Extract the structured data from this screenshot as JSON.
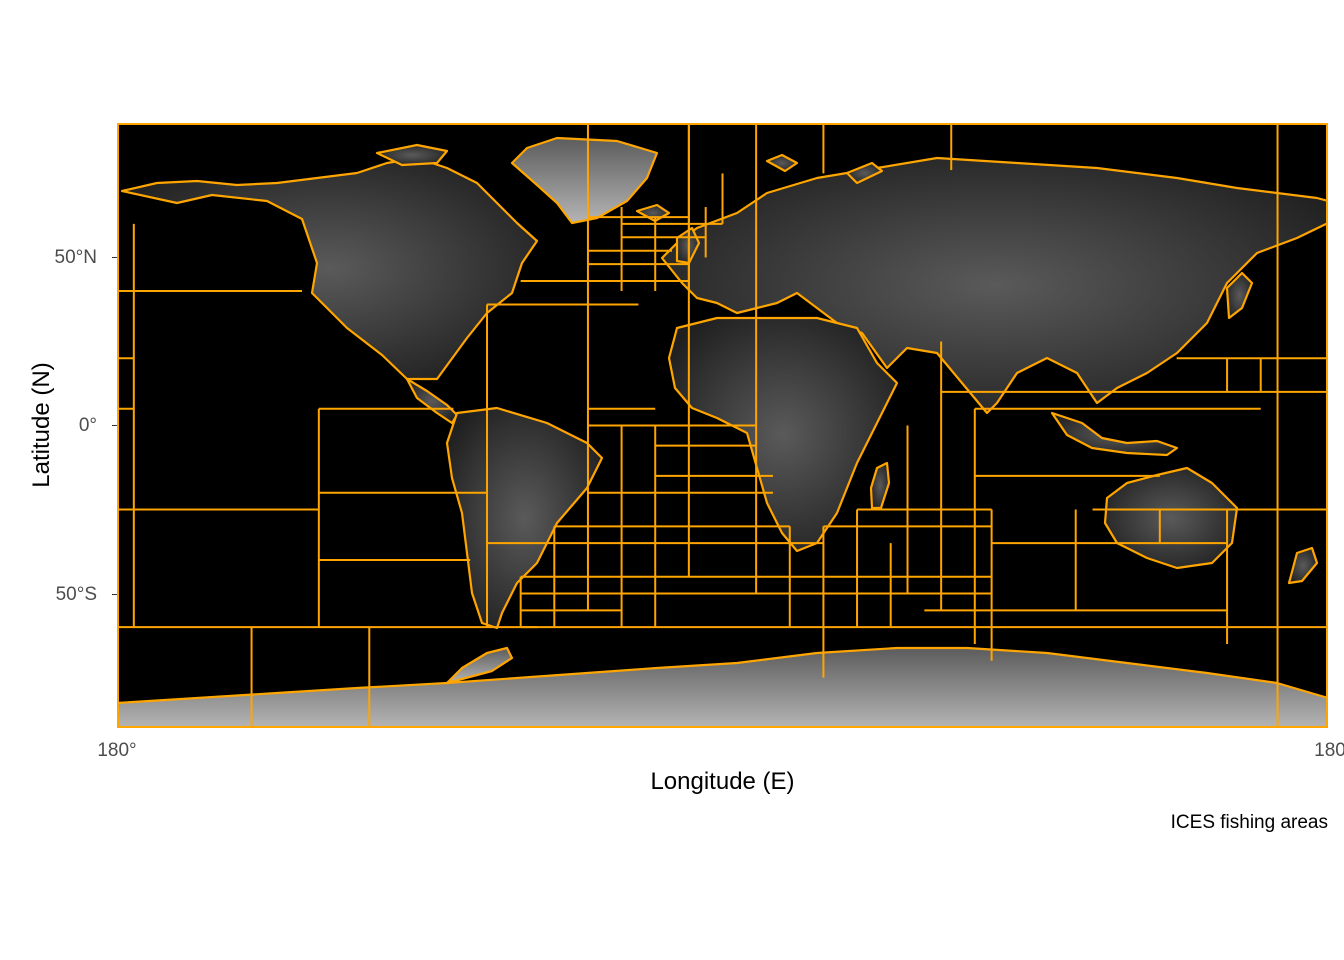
{
  "chart_data": {
    "type": "map",
    "projection": "equirectangular",
    "xlabel": "Longitude (E)",
    "ylabel": "Latitude (N)",
    "caption": "ICES fishing areas",
    "x_ticks": [
      {
        "value": -180,
        "label": "180°"
      },
      {
        "value": 180,
        "label": "180"
      }
    ],
    "y_ticks": [
      {
        "value": 50,
        "label": "50°N"
      },
      {
        "value": 0,
        "label": "0°"
      },
      {
        "value": -50,
        "label": "50°S"
      }
    ],
    "xlim": [
      -180,
      180
    ],
    "ylim": [
      -90,
      90
    ],
    "background": "elevation relief (grayscale)",
    "colors": {
      "panel": "#000000",
      "boundaries": "#FFA500",
      "relief_low": "#1a1a1a",
      "relief_high": "#d0d0d0"
    },
    "boundary_lines": {
      "horizontal": [
        {
          "lat": 40,
          "lon": [
            -180,
            -125
          ]
        },
        {
          "lat": 20,
          "lon": [
            -180,
            -175
          ]
        },
        {
          "lat": 5,
          "lon": [
            -180,
            -175
          ]
        },
        {
          "lat": -25,
          "lon": [
            -180,
            -120
          ]
        },
        {
          "lat": 5,
          "lon": [
            -120,
            -80
          ]
        },
        {
          "lat": -20,
          "lon": [
            -120,
            -70
          ]
        },
        {
          "lat": -40,
          "lon": [
            -120,
            -75
          ]
        },
        {
          "lat": -60,
          "lon": [
            -180,
            -55
          ]
        },
        {
          "lat": -60,
          "lon": [
            20,
            180
          ]
        },
        {
          "lat": 36,
          "lon": [
            -70,
            -25
          ]
        },
        {
          "lat": 5,
          "lon": [
            -40,
            -20
          ]
        },
        {
          "lat": 0,
          "lon": [
            -40,
            10
          ]
        },
        {
          "lat": -6,
          "lon": [
            -20,
            10
          ]
        },
        {
          "lat": -15,
          "lon": [
            -20,
            15
          ]
        },
        {
          "lat": -20,
          "lon": [
            -40,
            15
          ]
        },
        {
          "lat": -30,
          "lon": [
            -50,
            20
          ]
        },
        {
          "lat": -35,
          "lon": [
            -70,
            30
          ]
        },
        {
          "lat": -45,
          "lon": [
            -60,
            30
          ]
        },
        {
          "lat": -50,
          "lon": [
            -60,
            80
          ]
        },
        {
          "lat": -55,
          "lon": [
            -60,
            -30
          ]
        },
        {
          "lat": -25,
          "lon": [
            40,
            80
          ]
        },
        {
          "lat": -30,
          "lon": [
            30,
            80
          ]
        },
        {
          "lat": -45,
          "lon": [
            30,
            80
          ]
        },
        {
          "lat": -55,
          "lon": [
            60,
            80
          ]
        },
        {
          "lat": 10,
          "lon": [
            65,
            180
          ]
        },
        {
          "lat": 5,
          "lon": [
            75,
            160
          ]
        },
        {
          "lat": -15,
          "lon": [
            75,
            130
          ]
        },
        {
          "lat": -25,
          "lon": [
            110,
            180
          ]
        },
        {
          "lat": -35,
          "lon": [
            80,
            150
          ]
        },
        {
          "lat": -55,
          "lon": [
            80,
            150
          ]
        },
        {
          "lat": 20,
          "lon": [
            135,
            180
          ]
        },
        {
          "lat": -60,
          "lon": [
            -60,
            20
          ]
        },
        {
          "lat": 62,
          "lon": [
            -40,
            -10
          ]
        },
        {
          "lat": 60,
          "lon": [
            -30,
            0
          ]
        },
        {
          "lat": 56,
          "lon": [
            -30,
            -5
          ]
        },
        {
          "lat": 52,
          "lon": [
            -40,
            -15
          ]
        },
        {
          "lat": 48,
          "lon": [
            -40,
            -10
          ]
        },
        {
          "lat": 43,
          "lon": [
            -60,
            -10
          ]
        }
      ],
      "vertical": [
        {
          "lon": -175,
          "lat": [
            -60,
            60
          ]
        },
        {
          "lon": -120,
          "lat": [
            -60,
            5
          ]
        },
        {
          "lon": -140,
          "lat": [
            -90,
            -60
          ]
        },
        {
          "lon": -105,
          "lat": [
            -90,
            -60
          ]
        },
        {
          "lon": -70,
          "lat": [
            -60,
            36
          ]
        },
        {
          "lon": -60,
          "lat": [
            -60,
            -45
          ]
        },
        {
          "lon": -50,
          "lat": [
            -60,
            -30
          ]
        },
        {
          "lon": -40,
          "lat": [
            -55,
            90
          ]
        },
        {
          "lon": -30,
          "lat": [
            -60,
            0
          ]
        },
        {
          "lon": -20,
          "lat": [
            -60,
            0
          ]
        },
        {
          "lon": -10,
          "lat": [
            -45,
            90
          ]
        },
        {
          "lon": 10,
          "lat": [
            -50,
            90
          ]
        },
        {
          "lon": 20,
          "lat": [
            -60,
            -30
          ]
        },
        {
          "lon": 30,
          "lat": [
            -75,
            -30
          ]
        },
        {
          "lon": 40,
          "lat": [
            -60,
            -25
          ]
        },
        {
          "lon": 50,
          "lat": [
            -60,
            -35
          ]
        },
        {
          "lon": 55,
          "lat": [
            -50,
            0
          ]
        },
        {
          "lon": 65,
          "lat": [
            -55,
            25
          ]
        },
        {
          "lon": 75,
          "lat": [
            -65,
            5
          ]
        },
        {
          "lon": 80,
          "lat": [
            -70,
            -25
          ]
        },
        {
          "lon": 105,
          "lat": [
            -55,
            -25
          ]
        },
        {
          "lon": 130,
          "lat": [
            -35,
            -25
          ]
        },
        {
          "lon": 150,
          "lat": [
            -65,
            -25
          ]
        },
        {
          "lon": 150,
          "lat": [
            10,
            20
          ]
        },
        {
          "lon": 160,
          "lat": [
            10,
            20
          ]
        },
        {
          "lon": 165,
          "lat": [
            -90,
            90
          ]
        },
        {
          "lon": 68,
          "lat": [
            76,
            90
          ]
        },
        {
          "lon": -10,
          "lat": [
            40,
            90
          ]
        },
        {
          "lon": 30,
          "lat": [
            75,
            90
          ]
        },
        {
          "lon": 0,
          "lat": [
            60,
            75
          ]
        },
        {
          "lon": -5,
          "lat": [
            50,
            65
          ]
        },
        {
          "lon": -30,
          "lat": [
            40,
            65
          ]
        },
        {
          "lon": -20,
          "lat": [
            40,
            62
          ]
        }
      ]
    }
  }
}
